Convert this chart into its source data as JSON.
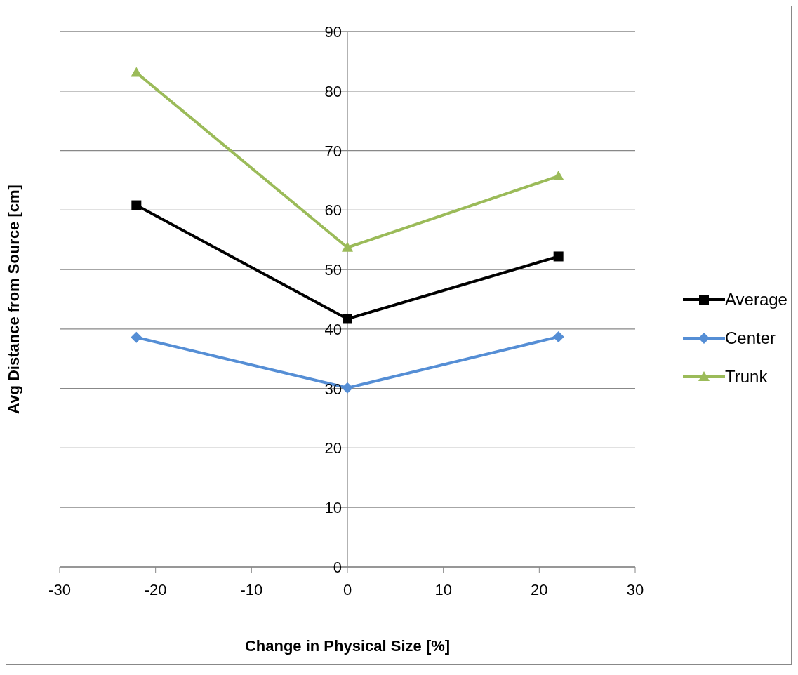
{
  "chart_data": {
    "type": "line",
    "xlabel": "Change in Physical Size [%]",
    "ylabel": "Avg Distance from Source [cm]",
    "x": [
      -22,
      0,
      22
    ],
    "series": [
      {
        "name": "Average",
        "color": "#000000",
        "marker": "square",
        "values": [
          60.8,
          41.7,
          52.2
        ]
      },
      {
        "name": "Center",
        "color": "#558ed5",
        "marker": "diamond",
        "values": [
          38.6,
          30.1,
          38.7
        ]
      },
      {
        "name": "Trunk",
        "color": "#9bbb59",
        "marker": "triangle",
        "values": [
          83.1,
          53.7,
          65.7
        ]
      }
    ],
    "xlim": [
      -30,
      30
    ],
    "xticks": [
      -30,
      -20,
      -10,
      0,
      10,
      20,
      30
    ],
    "ylim": [
      0,
      90
    ],
    "yticks": [
      0,
      10,
      20,
      30,
      40,
      50,
      60,
      70,
      80,
      90
    ],
    "grid": "y",
    "legend": "right",
    "line_style": "solid"
  }
}
